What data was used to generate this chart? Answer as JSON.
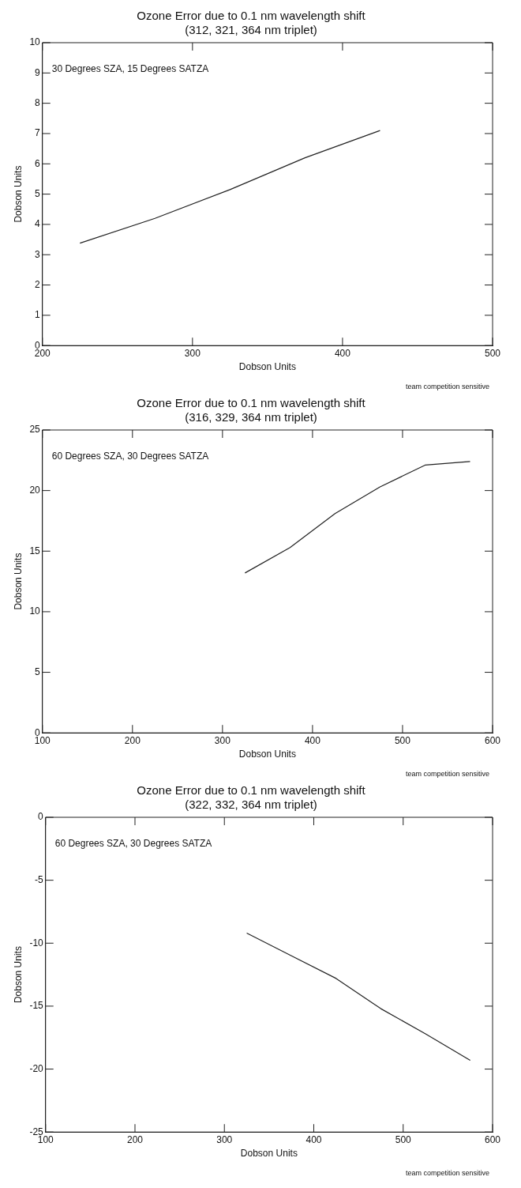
{
  "chart_data": [
    {
      "type": "line",
      "title": "Ozone Error due to 0.1 nm wavelength shift",
      "subtitle": "(312, 321, 364 nm triplet)",
      "xlabel": "Dobson Units",
      "ylabel": "Dobson Units",
      "annotations": [
        "30 Degrees SZA, 15 Degrees SATZA",
        "team competition sensitive"
      ],
      "x": [
        225,
        275,
        325,
        375,
        425
      ],
      "series": [
        {
          "color": "#222222",
          "values": [
            3.38,
            4.2,
            5.15,
            6.2,
            7.1
          ]
        }
      ],
      "xlim": [
        200,
        500
      ],
      "xticks": [
        200,
        300,
        400,
        500
      ],
      "ylim": [
        0,
        10
      ],
      "yticks": [
        0,
        1,
        2,
        3,
        4,
        5,
        6,
        7,
        8,
        9,
        10
      ],
      "grid": false,
      "legend": false,
      "marker": "none",
      "line_style": "solid"
    },
    {
      "type": "line",
      "title": "Ozone Error due to 0.1 nm wavelength shift",
      "subtitle": "(316, 329, 364 nm triplet)",
      "xlabel": "Dobson Units",
      "ylabel": "Dobson Units",
      "annotations": [
        "60 Degrees SZA, 30 Degrees SATZA",
        "team competition sensitive"
      ],
      "x": [
        325,
        375,
        425,
        475,
        525,
        575
      ],
      "series": [
        {
          "color": "#222222",
          "values": [
            13.2,
            15.3,
            18.1,
            20.3,
            22.1,
            22.4
          ]
        }
      ],
      "xlim": [
        100,
        600
      ],
      "xticks": [
        100,
        200,
        300,
        400,
        500,
        600
      ],
      "ylim": [
        0,
        25
      ],
      "yticks": [
        0,
        5,
        10,
        15,
        20,
        25
      ],
      "grid": false,
      "legend": false,
      "marker": "none",
      "line_style": "solid"
    },
    {
      "type": "line",
      "title": "Ozone Error due to 0.1 nm wavelength shift",
      "subtitle": "(322, 332, 364 nm triplet)",
      "xlabel": "Dobson Units",
      "ylabel": "Dobson Units",
      "annotations": [
        "60 Degrees SZA, 30 Degrees SATZA",
        "team competition sensitive"
      ],
      "x": [
        325,
        375,
        425,
        475,
        525,
        575
      ],
      "series": [
        {
          "color": "#222222",
          "values": [
            -9.2,
            -11.0,
            -12.8,
            -15.2,
            -17.2,
            -19.3
          ]
        }
      ],
      "xlim": [
        100,
        600
      ],
      "xticks": [
        100,
        200,
        300,
        400,
        500,
        600
      ],
      "ylim": [
        -25,
        0
      ],
      "yticks": [
        -25,
        -20,
        -15,
        -10,
        -5,
        0
      ],
      "grid": false,
      "legend": false,
      "marker": "none",
      "line_style": "solid"
    }
  ]
}
